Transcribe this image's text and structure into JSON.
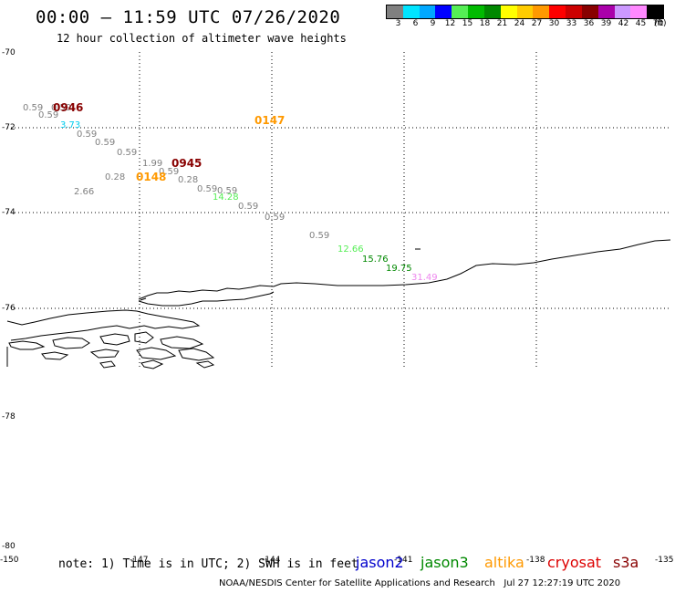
{
  "header": {
    "title": "00:00 – 11:59 UTC 07/26/2020",
    "subtitle": "12 hour collection of altimeter wave heights"
  },
  "legend": {
    "colors": [
      "#808080",
      "#00e5ff",
      "#00a8ff",
      "#0000ff",
      "#55ee55",
      "#00bb00",
      "#008800",
      "#ffff00",
      "#ffcc00",
      "#ff9900",
      "#ff0000",
      "#cc0000",
      "#880000",
      "#aa00aa",
      "#cc99ff",
      "#ff88ff",
      "#000000"
    ],
    "labels": [
      "3",
      "6",
      "9",
      "12",
      "15",
      "18",
      "21",
      "24",
      "27",
      "30",
      "33",
      "36",
      "39",
      "42",
      "45",
      "70"
    ],
    "units": "(ft)"
  },
  "axes": {
    "lat_labels": [
      {
        "text": "-70",
        "lat": -70
      },
      {
        "text": "-72",
        "lat": -72
      },
      {
        "text": "-74",
        "lat": -74
      },
      {
        "text": "-76",
        "lat": -76
      },
      {
        "text": "-78",
        "lat": -78
      },
      {
        "text": "-80",
        "lat": -80
      }
    ],
    "lon_labels": [
      {
        "text": "-150",
        "lon": -150
      },
      {
        "text": "-147",
        "lon": -147
      },
      {
        "text": "-144",
        "lon": -144
      },
      {
        "text": "-141",
        "lon": -141
      },
      {
        "text": "-138",
        "lon": -138
      },
      {
        "text": "-135",
        "lon": -135
      }
    ]
  },
  "observations": [
    {
      "text": "0.59",
      "color": "#808080"
    },
    {
      "text": "0.59",
      "color": "#808080"
    },
    {
      "text": "0.59",
      "color": "#808080"
    },
    {
      "text": "3.73",
      "color": "#00ccee"
    },
    {
      "text": "0.59",
      "color": "#808080"
    },
    {
      "text": "0.59",
      "color": "#808080"
    },
    {
      "text": "0.59",
      "color": "#808080"
    },
    {
      "text": "1.99",
      "color": "#808080"
    },
    {
      "text": "0.59",
      "color": "#808080"
    },
    {
      "text": "0.28",
      "color": "#808080"
    },
    {
      "text": "0.59",
      "color": "#808080"
    },
    {
      "text": "2.66",
      "color": "#808080"
    },
    {
      "text": "0.59",
      "color": "#808080"
    },
    {
      "text": "14.28",
      "color": "#55ee55"
    },
    {
      "text": "0.59",
      "color": "#808080"
    },
    {
      "text": "0.59",
      "color": "#808080"
    },
    {
      "text": "0.59",
      "color": "#808080"
    },
    {
      "text": "12.66",
      "color": "#55ee55"
    },
    {
      "text": "15.76",
      "color": "#008800"
    },
    {
      "text": "19.75",
      "color": "#008800"
    },
    {
      "text": "31.49",
      "color": "#ee88ee"
    },
    {
      "text": "0.28",
      "color": "#808080"
    }
  ],
  "pass_times": [
    {
      "text": "0946",
      "color": "#880000"
    },
    {
      "text": "0945",
      "color": "#880000"
    },
    {
      "text": "0148",
      "color": "#ff9900"
    },
    {
      "text": "0147",
      "color": "#ff9900"
    }
  ],
  "footer": {
    "note": "note: 1) Time is in UTC; 2) SWH is in feet",
    "credit": "NOAA/NESDIS Center for Satellite Applications and Research",
    "timestamp": "Jul 27 12:27:19 UTC 2020"
  },
  "satellites": [
    {
      "name": "jason2",
      "color": "#0000cc"
    },
    {
      "name": "jason3",
      "color": "#008800"
    },
    {
      "name": "altika",
      "color": "#ff9900"
    },
    {
      "name": "cryosat",
      "color": "#dd0000"
    },
    {
      "name": "s3a",
      "color": "#880000"
    }
  ]
}
